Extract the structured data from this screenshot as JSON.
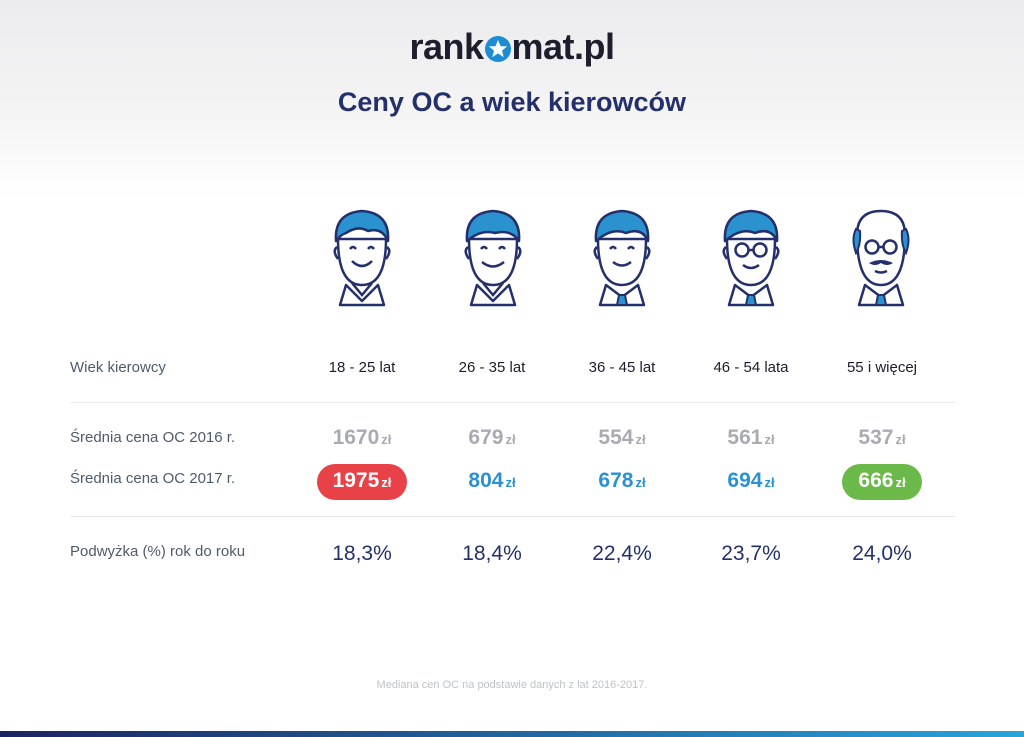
{
  "logo": {
    "left": "rank",
    "right": "mat.pl"
  },
  "title": "Ceny OC a wiek kierowców",
  "row_labels": {
    "age": "Wiek kierowcy",
    "p2016": "Średnia cena OC 2016 r.",
    "p2017": "Średnia cena OC 2017 r.",
    "increase": "Podwyżka (%) rok do roku"
  },
  "currency": "zł",
  "columns": [
    {
      "age": "18 - 25 lat",
      "p2016": "1670",
      "p2017": "1975",
      "increase": "18,3%"
    },
    {
      "age": "26 - 35 lat",
      "p2016": "679",
      "p2017": "804",
      "increase": "18,4%"
    },
    {
      "age": "36 - 45 lat",
      "p2016": "554",
      "p2017": "678",
      "increase": "22,4%"
    },
    {
      "age": "46 - 54 lata",
      "p2016": "561",
      "p2017": "694",
      "increase": "23,7%"
    },
    {
      "age": "55 i więcej",
      "p2016": "537",
      "p2017": "666",
      "increase": "24,0%"
    }
  ],
  "footnote": "Mediana cen OC na podstawie danych z lat 2016-2017.",
  "colors": {
    "navy": "#24306b",
    "blue": "#2a93cf",
    "highlight_max": "#e84147",
    "highlight_min": "#6ab949",
    "muted": "#a8acb2"
  },
  "icons": [
    "young-driver-icon",
    "driver-icon",
    "driver-tie-icon",
    "driver-glasses-icon",
    "senior-driver-icon"
  ],
  "chart_data": {
    "type": "table",
    "title": "Ceny OC a wiek kierowców",
    "categories": [
      "18 - 25 lat",
      "26 - 35 lat",
      "36 - 45 lat",
      "46 - 54 lata",
      "55 i więcej"
    ],
    "series": [
      {
        "name": "Średnia cena OC 2016 r.",
        "values": [
          1670,
          679,
          554,
          561,
          537
        ]
      },
      {
        "name": "Średnia cena OC 2017 r.",
        "values": [
          1975,
          804,
          678,
          694,
          666
        ]
      },
      {
        "name": "Podwyżka (%) rok do roku",
        "values": [
          18.3,
          18.4,
          22.4,
          23.7,
          24.0
        ]
      }
    ]
  }
}
